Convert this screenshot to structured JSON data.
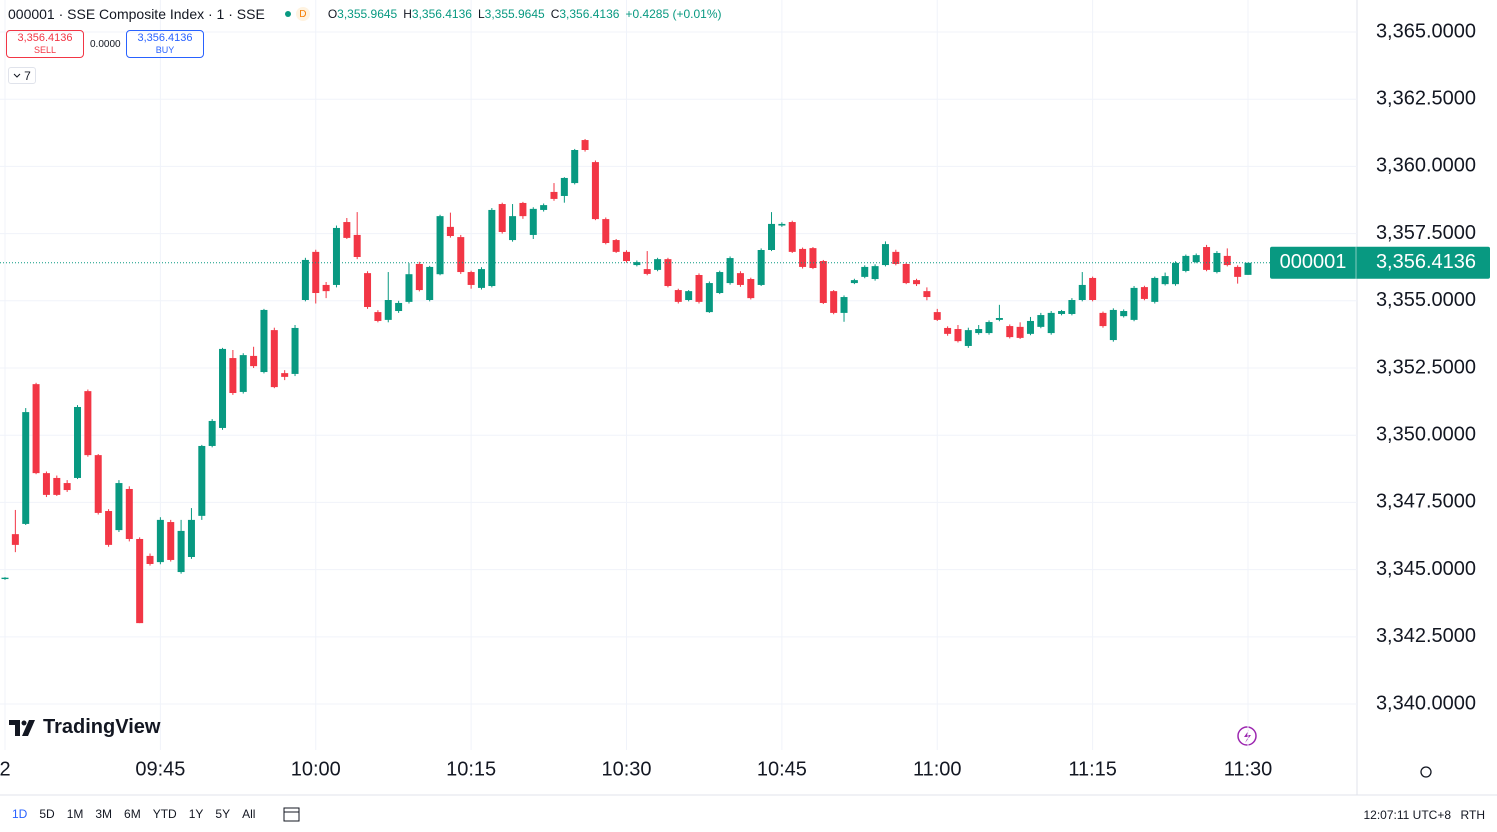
{
  "header": {
    "symbol": "000001 · SSE Composite Index · 1 · SSE",
    "badge": "D",
    "ohlc": [
      {
        "key": "O",
        "value": "3,355.9645"
      },
      {
        "key": "H",
        "value": "3,356.4136"
      },
      {
        "key": "L",
        "value": "3,355.9645"
      },
      {
        "key": "C",
        "value": "3,356.4136"
      }
    ],
    "change": "+0.4285 (+0.01%)"
  },
  "trade": {
    "sell_price": "3,356.4136",
    "sell": "SELL",
    "spread": "0.0000",
    "buy_price": "3,356.4136",
    "buy": "BUY",
    "indicators": "7"
  },
  "branding": "TradingView",
  "toolbar": {
    "ranges": [
      "1D",
      "5D",
      "1M",
      "3M",
      "6M",
      "YTD",
      "1Y",
      "5Y",
      "All"
    ],
    "clock": "12:07:11 UTC+8",
    "session": "RTH"
  },
  "chart_data": {
    "type": "candlestick",
    "symbol_tag": "000001",
    "last_price": {
      "value": 3356.4136,
      "label": "3,356.4136"
    },
    "categories": [
      "2",
      null,
      null,
      null,
      null,
      null,
      null,
      null,
      null,
      null,
      null,
      null,
      null,
      null,
      null,
      "09:45",
      null,
      null,
      null,
      null,
      null,
      null,
      null,
      null,
      null,
      null,
      null,
      null,
      null,
      null,
      "10:00",
      null,
      null,
      null,
      null,
      null,
      null,
      null,
      null,
      null,
      null,
      null,
      null,
      null,
      null,
      "10:15",
      null,
      null,
      null,
      null,
      null,
      null,
      null,
      null,
      null,
      null,
      null,
      null,
      null,
      null,
      "10:30",
      null,
      null,
      null,
      null,
      null,
      null,
      null,
      null,
      null,
      null,
      null,
      null,
      null,
      null,
      "10:45",
      null,
      null,
      null,
      null,
      null,
      null,
      null,
      null,
      null,
      null,
      null,
      null,
      null,
      null,
      "11:00",
      null,
      null,
      null,
      null,
      null,
      null,
      null,
      null,
      null,
      null,
      null,
      null,
      null,
      null,
      "11:15",
      null,
      null,
      null,
      null,
      null,
      null,
      null,
      null,
      null,
      null,
      null,
      null,
      null,
      null,
      "11:30"
    ],
    "series": [
      {
        "name": "000001",
        "up_color": "#089981",
        "down_color": "#f23645",
        "open": [
          3344.65,
          3346.32,
          3346.7,
          3351.9,
          3348.59,
          3348.41,
          3348.22,
          3348.41,
          3351.64,
          3349.26,
          3347.18,
          3346.47,
          3348.0,
          3346.14,
          3345.51,
          3345.28,
          3346.77,
          3344.91,
          3345.47,
          3347.0,
          3349.6,
          3350.27,
          3352.87,
          3351.61,
          3352.95,
          3352.35,
          3353.91,
          3352.31,
          3352.28,
          3355.03,
          3356.82,
          3355.59,
          3355.59,
          3357.93,
          3357.45,
          3356.03,
          3354.58,
          3354.29,
          3354.62,
          3354.96,
          3356.37,
          3355.03,
          3355.99,
          3357.75,
          3357.37,
          3356.07,
          3355.48,
          3355.55,
          3358.6,
          3357.26,
          3358.64,
          3357.45,
          3358.38,
          3359.05,
          3358.9,
          3359.38,
          3360.98,
          3360.16,
          3358.04,
          3357.26,
          3356.82,
          3356.33,
          3356.18,
          3356.15,
          3356.55,
          3355.4,
          3355.03,
          3355.96,
          3354.58,
          3355.29,
          3355.66,
          3356.03,
          3355.81,
          3355.59,
          3356.89,
          3357.8,
          3357.93,
          3356.93,
          3356.96,
          3356.48,
          3355.36,
          3354.55,
          3355.66,
          3355.89,
          3355.81,
          3356.33,
          3356.82,
          3356.37,
          3355.77,
          3355.36,
          3354.58,
          3353.99,
          3353.95,
          3353.32,
          3353.8,
          3353.8,
          3354.29,
          3354.06,
          3354.03,
          3353.77,
          3354.03,
          3353.8,
          3354.51,
          3354.51,
          3355.03,
          3355.85,
          3354.55,
          3353.54,
          3354.43,
          3354.29,
          3355.51,
          3354.96,
          3355.62,
          3355.62,
          3356.11,
          3356.44,
          3357.0,
          3356.07,
          3356.67,
          3356.26,
          3355.9645
        ],
        "high": [
          3344.72,
          3347.22,
          3351.01,
          3351.95,
          3348.65,
          3348.5,
          3348.33,
          3351.12,
          3351.7,
          3349.3,
          3347.25,
          3348.33,
          3348.1,
          3346.2,
          3345.6,
          3346.95,
          3346.85,
          3346.85,
          3347.29,
          3349.64,
          3350.6,
          3353.25,
          3353.17,
          3353.05,
          3353.29,
          3354.7,
          3354.0,
          3352.42,
          3354.1,
          3356.6,
          3356.9,
          3355.7,
          3357.8,
          3358.08,
          3358.3,
          3356.1,
          3354.65,
          3356.07,
          3355.0,
          3356.4,
          3356.45,
          3356.3,
          3358.2,
          3358.28,
          3357.45,
          3356.12,
          3356.25,
          3358.45,
          3358.65,
          3358.6,
          3358.68,
          3358.48,
          3358.62,
          3359.38,
          3359.6,
          3360.65,
          3361.02,
          3360.22,
          3358.1,
          3357.3,
          3356.88,
          3356.5,
          3356.85,
          3356.6,
          3356.6,
          3355.45,
          3355.4,
          3356.02,
          3355.72,
          3356.12,
          3356.65,
          3356.1,
          3355.86,
          3356.95,
          3358.3,
          3357.92,
          3357.98,
          3356.98,
          3357.0,
          3356.52,
          3355.4,
          3355.2,
          3355.82,
          3356.32,
          3356.36,
          3357.21,
          3356.9,
          3356.42,
          3355.82,
          3355.5,
          3354.7,
          3354.05,
          3354.1,
          3354.0,
          3354.1,
          3354.27,
          3354.85,
          3354.12,
          3354.2,
          3354.4,
          3354.55,
          3354.62,
          3354.66,
          3355.1,
          3356.07,
          3355.9,
          3354.6,
          3354.72,
          3354.68,
          3355.55,
          3355.56,
          3355.9,
          3356.05,
          3356.47,
          3356.72,
          3356.76,
          3357.08,
          3356.85,
          3356.95,
          3356.32,
          3356.4136
        ],
        "low": [
          3344.62,
          3345.65,
          3346.66,
          3348.55,
          3347.7,
          3347.74,
          3347.89,
          3348.37,
          3349.2,
          3347.05,
          3345.85,
          3346.4,
          3346.05,
          3343.01,
          3345.15,
          3345.2,
          3345.3,
          3344.85,
          3345.4,
          3346.85,
          3349.55,
          3350.2,
          3351.5,
          3351.55,
          3352.5,
          3352.3,
          3351.75,
          3352.05,
          3352.2,
          3354.98,
          3354.9,
          3355.1,
          3355.5,
          3357.3,
          3356.55,
          3354.7,
          3354.2,
          3354.2,
          3354.55,
          3354.9,
          3355.35,
          3354.98,
          3355.95,
          3357.35,
          3356.0,
          3355.45,
          3355.42,
          3355.5,
          3357.5,
          3357.2,
          3358.05,
          3357.3,
          3358.32,
          3358.72,
          3358.65,
          3359.33,
          3360.55,
          3358.0,
          3357.1,
          3356.78,
          3356.42,
          3356.28,
          3355.95,
          3356.1,
          3355.5,
          3354.9,
          3354.98,
          3354.9,
          3354.55,
          3355.25,
          3355.6,
          3355.52,
          3355.05,
          3355.55,
          3356.85,
          3357.75,
          3356.78,
          3356.2,
          3356.18,
          3354.88,
          3354.5,
          3354.22,
          3355.62,
          3355.84,
          3355.75,
          3356.28,
          3356.32,
          3355.62,
          3355.55,
          3355.02,
          3354.25,
          3353.7,
          3353.45,
          3353.25,
          3353.74,
          3353.74,
          3354.24,
          3353.6,
          3353.58,
          3353.72,
          3353.98,
          3353.74,
          3354.46,
          3354.46,
          3354.98,
          3354.98,
          3354.0,
          3353.48,
          3354.38,
          3354.24,
          3355.02,
          3354.9,
          3355.57,
          3355.56,
          3356.06,
          3356.4,
          3356.1,
          3356.02,
          3356.28,
          3355.64,
          3355.9645
        ],
        "close": [
          3344.7,
          3345.92,
          3350.86,
          3348.59,
          3347.78,
          3347.78,
          3347.96,
          3351.05,
          3349.26,
          3347.11,
          3345.92,
          3348.22,
          3346.14,
          3343.01,
          3345.21,
          3346.85,
          3345.36,
          3346.44,
          3346.85,
          3349.6,
          3350.53,
          3353.21,
          3351.57,
          3352.98,
          3352.57,
          3354.66,
          3351.79,
          3352.17,
          3353.99,
          3356.52,
          3355.29,
          3355.36,
          3357.71,
          3357.34,
          3356.63,
          3354.77,
          3354.25,
          3355.03,
          3354.92,
          3355.99,
          3355.4,
          3356.26,
          3358.15,
          3357.41,
          3356.07,
          3355.59,
          3356.18,
          3358.38,
          3357.56,
          3358.15,
          3358.15,
          3358.42,
          3358.56,
          3358.79,
          3359.57,
          3360.61,
          3360.61,
          3358.04,
          3357.15,
          3356.82,
          3356.48,
          3356.44,
          3356.0,
          3356.55,
          3355.55,
          3354.96,
          3355.36,
          3354.96,
          3355.66,
          3356.07,
          3356.59,
          3355.59,
          3355.1,
          3356.89,
          3357.86,
          3357.86,
          3356.82,
          3356.26,
          3356.22,
          3354.92,
          3354.55,
          3355.14,
          3355.77,
          3356.26,
          3356.29,
          3357.11,
          3356.37,
          3355.66,
          3355.62,
          3355.14,
          3354.29,
          3353.77,
          3353.5,
          3353.91,
          3353.95,
          3354.21,
          3354.36,
          3353.65,
          3353.62,
          3354.25,
          3354.47,
          3354.55,
          3354.62,
          3355.03,
          3355.59,
          3355.03,
          3354.06,
          3354.66,
          3354.62,
          3355.48,
          3355.07,
          3355.85,
          3355.92,
          3356.41,
          3356.67,
          3356.7,
          3356.15,
          3356.78,
          3356.33,
          3355.89,
          3356.4136
        ]
      }
    ],
    "ylim": [
      3338.29,
      3366.19
    ],
    "yticks": [
      {
        "value": 3340,
        "label": "3,340.0000"
      },
      {
        "value": 3342.5,
        "label": "3,342.5000"
      },
      {
        "value": 3345,
        "label": "3,345.0000"
      },
      {
        "value": 3347.5,
        "label": "3,347.5000"
      },
      {
        "value": 3350,
        "label": "3,350.0000"
      },
      {
        "value": 3352.5,
        "label": "3,352.5000"
      },
      {
        "value": 3355,
        "label": "3,355.0000"
      },
      {
        "value": 3357.5,
        "label": "3,357.5000"
      },
      {
        "value": 3360,
        "label": "3,360.0000"
      },
      {
        "value": 3362.5,
        "label": "3,362.5000"
      },
      {
        "value": 3365,
        "label": "3,365.0000"
      }
    ],
    "grid": true
  }
}
